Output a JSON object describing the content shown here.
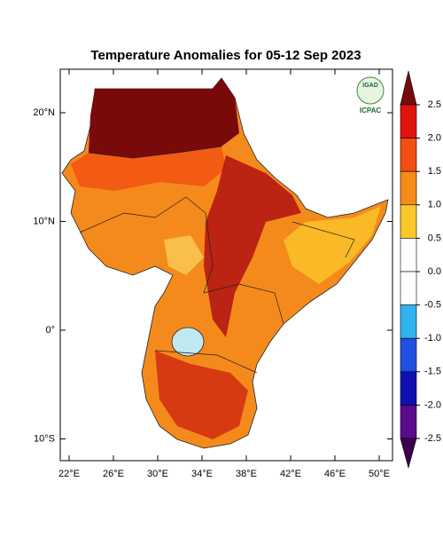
{
  "title": "Temperature Anomalies for 05-12 Sep 2023",
  "logo": {
    "top": "IGAD",
    "bottom": "ICPAC"
  },
  "map": {
    "xlim": [
      21.2,
      51.2
    ],
    "ylim": [
      -12,
      24
    ],
    "xticks": [
      {
        "value": 22,
        "label": "22°E"
      },
      {
        "value": 26,
        "label": "26°E"
      },
      {
        "value": 30,
        "label": "30°E"
      },
      {
        "value": 34,
        "label": "34°E"
      },
      {
        "value": 38,
        "label": "38°E"
      },
      {
        "value": 42,
        "label": "42°E"
      },
      {
        "value": 46,
        "label": "46°E"
      },
      {
        "value": 50,
        "label": "50°E"
      }
    ],
    "yticks": [
      {
        "value": 20,
        "label": "20°N"
      },
      {
        "value": 10,
        "label": "10°N"
      },
      {
        "value": 0,
        "label": "0°"
      },
      {
        "value": -10,
        "label": "10°S"
      }
    ]
  },
  "colorbar": {
    "levels": [
      2.5,
      {
        "value": 2.0,
        "label": "2.0"
      },
      1.5,
      {
        "value": 1.0,
        "label": "1.0"
      },
      0.5,
      {
        "value": 0.0,
        "label": "0.0"
      },
      -0.5,
      {
        "value": -1.0,
        "label": "-1.0"
      },
      -1.5,
      {
        "value": -2.0,
        "label": "-2.0"
      },
      -2.5
    ],
    "colors": [
      "#7a0a0a",
      "#e0140f",
      "#f24e12",
      "#f78b1a",
      "#fbc82a",
      "#ffffff",
      "#ffffff",
      "#30b4f0",
      "#2050e0",
      "#1010b0",
      "#5a0a8a",
      "#3a0050"
    ]
  }
}
